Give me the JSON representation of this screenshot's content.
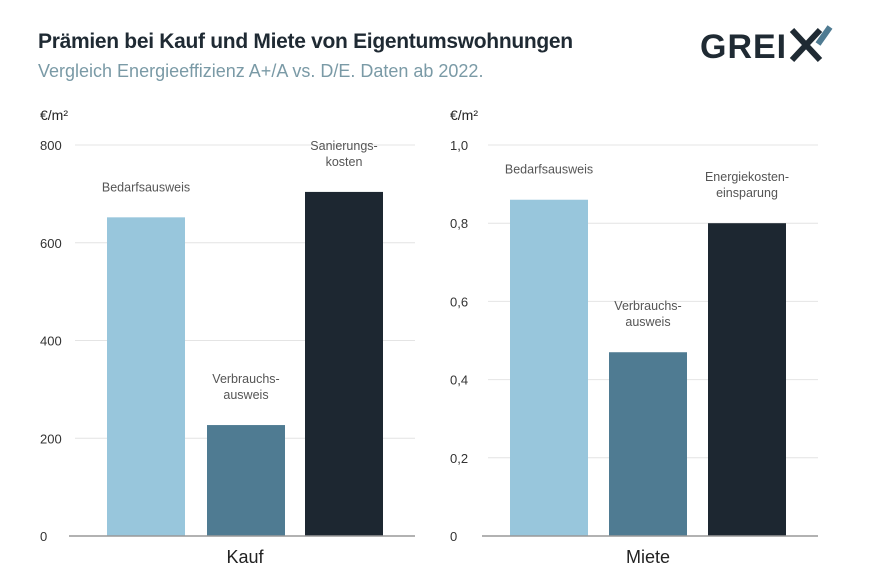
{
  "title": "Prämien bei Kauf und Miete von Eigentumswohnungen",
  "subtitle": "Vergleich Energieeffizienz A+/A vs. D/E. Daten ab 2022.",
  "logo": "GREIX",
  "chart_data": [
    {
      "type": "bar",
      "ylabel": "€/m²",
      "xlabel": "Kauf",
      "categories": [
        "Bedarfsausweis",
        "Verbrauchs-ausweis",
        "Sanierungs-kosten"
      ],
      "values": [
        652,
        227,
        704
      ],
      "ylim": [
        0,
        800
      ],
      "yticks": [
        "0",
        "200",
        "400",
        "600",
        "800"
      ],
      "tick_values": [
        0,
        200,
        400,
        600,
        800
      ],
      "colors": [
        "#98c6dc",
        "#4f7b92",
        "#1d2731"
      ],
      "grid": true
    },
    {
      "type": "bar",
      "ylabel": "€/m²",
      "xlabel": "Miete",
      "categories": [
        "Bedarfsausweis",
        "Verbrauchs-ausweis",
        "Energiekosten-einsparung"
      ],
      "values": [
        0.86,
        0.47,
        0.8
      ],
      "ylim": [
        0,
        1
      ],
      "yticks": [
        "0",
        "0,2",
        "0,4",
        "0,6",
        "0,8",
        "1,0"
      ],
      "tick_values": [
        0,
        0.2,
        0.4,
        0.6,
        0.8,
        1.0
      ],
      "colors": [
        "#98c6dc",
        "#4f7b92",
        "#1d2731"
      ],
      "grid": true
    }
  ]
}
